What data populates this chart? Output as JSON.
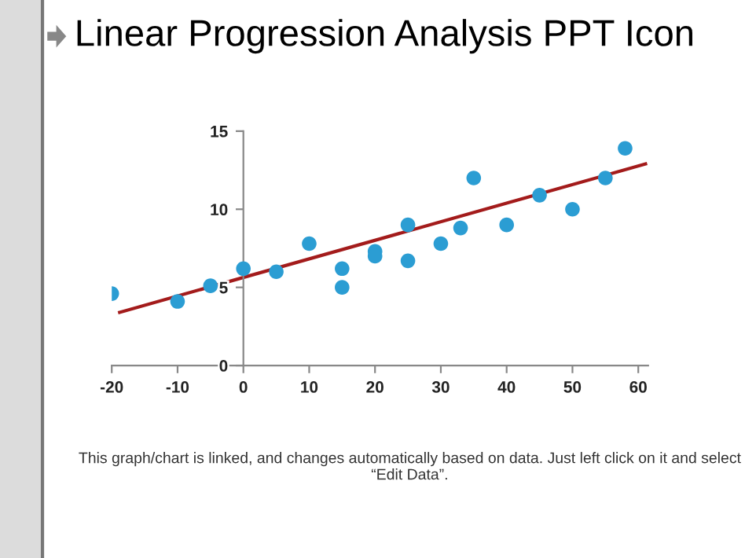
{
  "chart_data": {
    "type": "scatter",
    "title": "Linear Progression Analysis PPT Icon",
    "annotations": [
      "This graph/chart is linked, and changes automatically based on data. Just left click on it and select “Edit Data”."
    ],
    "series": [
      {
        "color": "#2b9dd3",
        "marker": "circle",
        "x": [
          -20,
          -10,
          -5,
          0,
          5,
          10,
          15,
          15,
          20,
          20,
          25,
          25,
          30,
          33,
          35,
          40,
          45,
          50,
          55,
          58
        ],
        "values": [
          4.6,
          4.1,
          5.1,
          6.2,
          6.0,
          7.8,
          6.2,
          5.0,
          7.3,
          7.0,
          9.0,
          6.7,
          7.8,
          8.8,
          12.0,
          9.0,
          10.9,
          10.0,
          12.0,
          13.9
        ]
      },
      {
        "type": "line",
        "color": "#a31b1b",
        "marker": "none",
        "x": [
          -18.8,
          61.1
        ],
        "values": [
          3.4,
          12.9
        ]
      }
    ],
    "xlim": [
      -20,
      61.5
    ],
    "xticks": [
      -20,
      -10,
      0,
      10,
      20,
      30,
      40,
      50,
      60
    ],
    "ylim": [
      0,
      15
    ],
    "yticks": [
      0,
      5,
      10,
      15
    ],
    "grid": false,
    "line_style": "solid"
  }
}
